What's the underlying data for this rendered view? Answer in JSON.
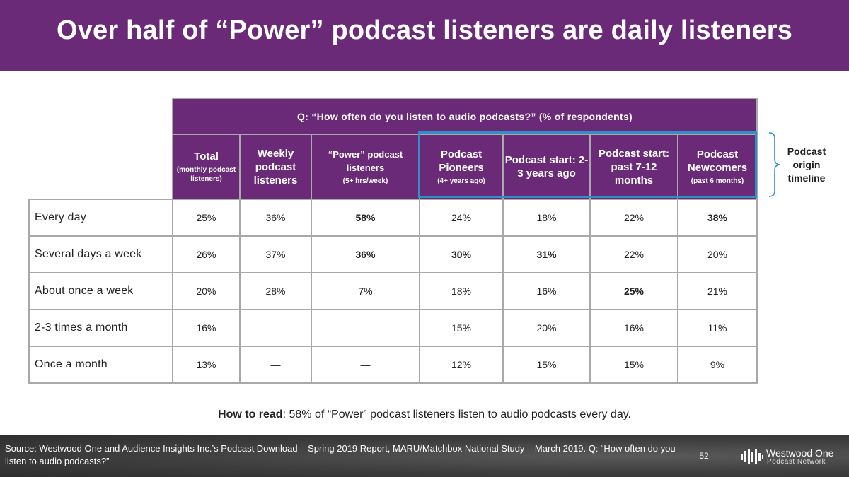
{
  "title": "Over half of “Power” podcast listeners are daily listeners",
  "question": "Q: “How often do you listen to audio podcasts?” (% of respondents)",
  "columns": [
    {
      "main": "Total",
      "sub": "(monthly podcast listeners)"
    },
    {
      "main": "Weekly podcast listeners",
      "sub": ""
    },
    {
      "main": "“Power” podcast listeners",
      "sub": "(5+ hrs/week)"
    },
    {
      "main": "Podcast Pioneers",
      "sub": "(4+ years ago)"
    },
    {
      "main": "Podcast start: 2-3 years ago",
      "sub": ""
    },
    {
      "main": "Podcast start: past 7-12 months",
      "sub": ""
    },
    {
      "main": "Podcast Newcomers",
      "sub": "(past 6 months)"
    }
  ],
  "rows": [
    {
      "label": "Every day",
      "values": [
        "25%",
        "36%",
        "58%",
        "24%",
        "18%",
        "22%",
        "38%"
      ]
    },
    {
      "label": "Several days a week",
      "values": [
        "26%",
        "37%",
        "36%",
        "30%",
        "31%",
        "22%",
        "20%"
      ]
    },
    {
      "label": "About once a week",
      "values": [
        "20%",
        "28%",
        "7%",
        "18%",
        "16%",
        "25%",
        "21%"
      ]
    },
    {
      "label": "2-3 times a month",
      "values": [
        "16%",
        "—",
        "—",
        "15%",
        "20%",
        "16%",
        "11%"
      ]
    },
    {
      "label": "Once a month",
      "values": [
        "13%",
        "—",
        "—",
        "12%",
        "15%",
        "15%",
        "9%"
      ]
    }
  ],
  "side_label": "Podcast origin timeline",
  "how_to_read": {
    "label": "How to read",
    "text": ": 58% of “Power” podcast listeners listen to audio podcasts every day."
  },
  "source": "Source: Westwood One and Audience Insights Inc.’s Podcast Download – Spring 2019 Report, MARU/Matchbox National Study – March 2019. Q: “How often do you listen to audio podcasts?”",
  "page_number": "52",
  "logo": {
    "name": "Westwood One",
    "sub": "Podcast Network",
    "icon": "waveform-logo-icon"
  },
  "colors": {
    "brand_purple": "#6a2a78",
    "highlight_blue": "#2f8fc6",
    "footer_gray": "#3e3e3e"
  }
}
